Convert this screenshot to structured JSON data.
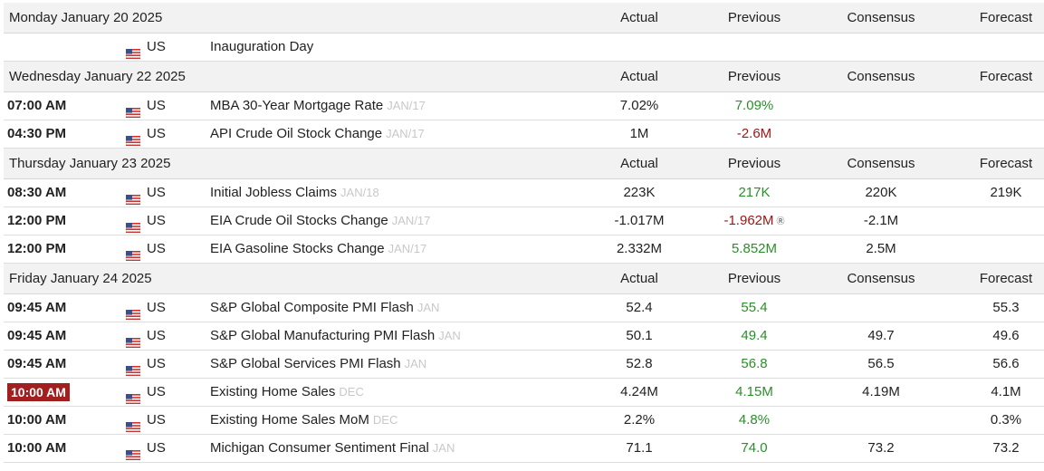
{
  "columns": {
    "actual": "Actual",
    "previous": "Previous",
    "consensus": "Consensus",
    "forecast": "Forecast"
  },
  "colors": {
    "positive": "#2a8f2a",
    "negative": "#a31515",
    "highlight": "#a11f1f"
  },
  "days": [
    {
      "date": "Monday January 20 2025",
      "events": [
        {
          "time": "",
          "country": "US",
          "flag": "us-flag-icon",
          "event": "Inauguration Day",
          "period": "",
          "actual": "",
          "previous": "",
          "previous_color": "",
          "revised": false,
          "consensus": "",
          "forecast": "",
          "highlight": false
        }
      ]
    },
    {
      "date": "Wednesday January 22 2025",
      "events": [
        {
          "time": "07:00 AM",
          "country": "US",
          "flag": "us-flag-icon",
          "event": "MBA 30-Year Mortgage Rate",
          "period": "JAN/17",
          "actual": "7.02%",
          "previous": "7.09%",
          "previous_color": "green",
          "revised": false,
          "consensus": "",
          "forecast": "",
          "highlight": false
        },
        {
          "time": "04:30 PM",
          "country": "US",
          "flag": "us-flag-icon",
          "event": "API Crude Oil Stock Change",
          "period": "JAN/17",
          "actual": "1M",
          "previous": "-2.6M",
          "previous_color": "red",
          "revised": false,
          "consensus": "",
          "forecast": "",
          "highlight": false
        }
      ]
    },
    {
      "date": "Thursday January 23 2025",
      "events": [
        {
          "time": "08:30 AM",
          "country": "US",
          "flag": "us-flag-icon",
          "event": "Initial Jobless Claims",
          "period": "JAN/18",
          "actual": "223K",
          "previous": "217K",
          "previous_color": "green",
          "revised": false,
          "consensus": "220K",
          "forecast": "219K",
          "highlight": false
        },
        {
          "time": "12:00 PM",
          "country": "US",
          "flag": "us-flag-icon",
          "event": "EIA Crude Oil Stocks Change",
          "period": "JAN/17",
          "actual": "-1.017M",
          "previous": "-1.962M",
          "previous_color": "red",
          "revised": true,
          "consensus": "-2.1M",
          "forecast": "",
          "highlight": false
        },
        {
          "time": "12:00 PM",
          "country": "US",
          "flag": "us-flag-icon",
          "event": "EIA Gasoline Stocks Change",
          "period": "JAN/17",
          "actual": "2.332M",
          "previous": "5.852M",
          "previous_color": "green",
          "revised": false,
          "consensus": "2.5M",
          "forecast": "",
          "highlight": false
        }
      ]
    },
    {
      "date": "Friday January 24 2025",
      "events": [
        {
          "time": "09:45 AM",
          "country": "US",
          "flag": "us-flag-icon",
          "event": "S&P Global Composite PMI Flash",
          "period": "JAN",
          "actual": "52.4",
          "previous": "55.4",
          "previous_color": "green",
          "revised": false,
          "consensus": "",
          "forecast": "55.3",
          "highlight": false
        },
        {
          "time": "09:45 AM",
          "country": "US",
          "flag": "us-flag-icon",
          "event": "S&P Global Manufacturing PMI Flash",
          "period": "JAN",
          "actual": "50.1",
          "previous": "49.4",
          "previous_color": "green",
          "revised": false,
          "consensus": "49.7",
          "forecast": "49.6",
          "highlight": false
        },
        {
          "time": "09:45 AM",
          "country": "US",
          "flag": "us-flag-icon",
          "event": "S&P Global Services PMI Flash",
          "period": "JAN",
          "actual": "52.8",
          "previous": "56.8",
          "previous_color": "green",
          "revised": false,
          "consensus": "56.5",
          "forecast": "56.6",
          "highlight": false
        },
        {
          "time": "10:00 AM",
          "country": "US",
          "flag": "us-flag-icon",
          "event": "Existing Home Sales",
          "period": "DEC",
          "actual": "4.24M",
          "previous": "4.15M",
          "previous_color": "green",
          "revised": false,
          "consensus": "4.19M",
          "forecast": "4.1M",
          "highlight": true
        },
        {
          "time": "10:00 AM",
          "country": "US",
          "flag": "us-flag-icon",
          "event": "Existing Home Sales MoM",
          "period": "DEC",
          "actual": "2.2%",
          "previous": "4.8%",
          "previous_color": "green",
          "revised": false,
          "consensus": "",
          "forecast": "0.3%",
          "highlight": false
        },
        {
          "time": "10:00 AM",
          "country": "US",
          "flag": "us-flag-icon",
          "event": "Michigan Consumer Sentiment Final",
          "period": "JAN",
          "actual": "71.1",
          "previous": "74.0",
          "previous_color": "green",
          "revised": false,
          "consensus": "73.2",
          "forecast": "73.2",
          "highlight": false
        }
      ]
    }
  ]
}
